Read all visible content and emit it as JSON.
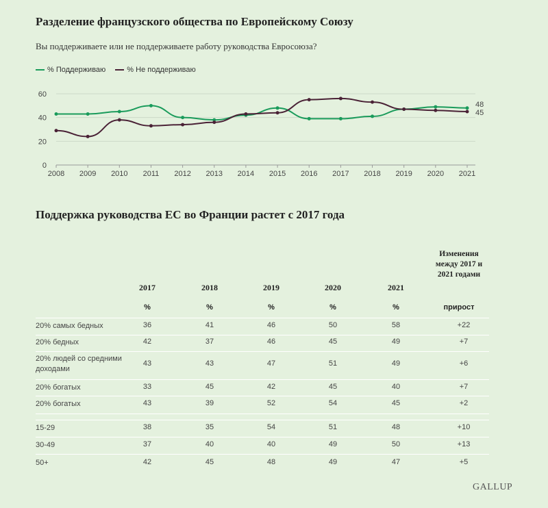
{
  "title": "Разделение французского общества по Европейскому Союзу",
  "subtitle": "Вы поддерживаете или не поддерживаете работу руководства Евросоюза?",
  "chart_data": {
    "type": "line",
    "x": [
      "2008",
      "2009",
      "2010",
      "2011",
      "2012",
      "2013",
      "2014",
      "2015",
      "2016",
      "2017",
      "2018",
      "2019",
      "2020",
      "2021"
    ],
    "ylim": [
      0,
      60
    ],
    "yticks": [
      "0",
      "20",
      "40",
      "60"
    ],
    "series": [
      {
        "name": "% Поддерживаю",
        "color": "#1a9b5b",
        "values": [
          43,
          43,
          45,
          50,
          40,
          38,
          42,
          48,
          39,
          39,
          41,
          47,
          49,
          48
        ]
      },
      {
        "name": "% Не поддерживаю",
        "color": "#4a2236",
        "values": [
          29,
          24,
          38,
          33,
          34,
          36,
          43,
          44,
          55,
          56,
          53,
          47,
          46,
          45
        ]
      }
    ],
    "end_labels": [
      "48",
      "45"
    ]
  },
  "table": {
    "title": "Поддержка руководства ЕС во Франции растет с 2017 года",
    "change_header": "Изменения между 2017 и 2021 годами",
    "years": [
      "2017",
      "2018",
      "2019",
      "2020",
      "2021"
    ],
    "pct": "%",
    "change_unit": "прирост",
    "rows": [
      {
        "label": "20% самых бедных",
        "values": [
          "36",
          "41",
          "46",
          "50",
          "58"
        ],
        "change": "+22"
      },
      {
        "label": "20% бедных",
        "values": [
          "42",
          "37",
          "46",
          "45",
          "49"
        ],
        "change": "+7"
      },
      {
        "label": "20% людей со средними доходами",
        "values": [
          "43",
          "43",
          "47",
          "51",
          "49"
        ],
        "change": "+6"
      },
      {
        "label": "20% богатых",
        "values": [
          "33",
          "45",
          "42",
          "45",
          "40"
        ],
        "change": "+7"
      },
      {
        "label": "20% богатых",
        "values": [
          "43",
          "39",
          "52",
          "54",
          "45"
        ],
        "change": "+2"
      },
      {
        "label": "15-29",
        "values": [
          "38",
          "35",
          "54",
          "51",
          "48"
        ],
        "change": "+10"
      },
      {
        "label": "30-49",
        "values": [
          "37",
          "40",
          "40",
          "49",
          "50"
        ],
        "change": "+13"
      },
      {
        "label": "50+",
        "values": [
          "42",
          "45",
          "48",
          "49",
          "47"
        ],
        "change": "+5"
      }
    ]
  },
  "source": "GALLUP"
}
